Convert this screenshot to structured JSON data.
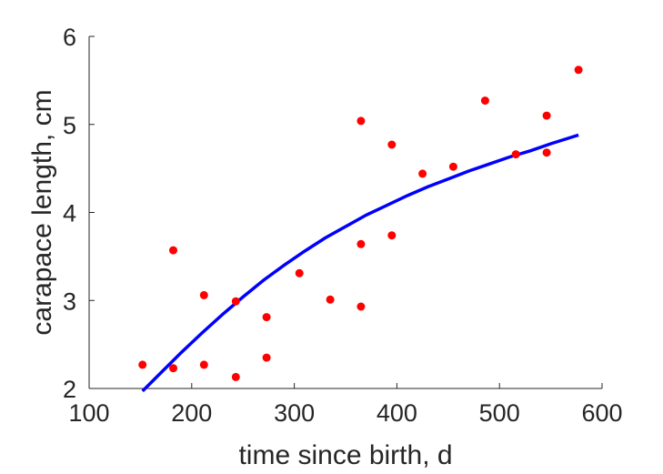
{
  "chart_data": {
    "type": "scatter",
    "title": "",
    "xlabel": "time since birth, d",
    "ylabel": "carapace length, cm",
    "xlim": [
      100,
      600
    ],
    "ylim": [
      2,
      6
    ],
    "x_ticks": [
      "100",
      "200",
      "300",
      "400",
      "500",
      "600"
    ],
    "y_ticks": [
      "2",
      "3",
      "4",
      "5",
      "6"
    ],
    "grid": false,
    "legend": "none",
    "series": [
      {
        "kind": "points",
        "color": "#ff0000",
        "points": [
          [
            152,
            2.27
          ],
          [
            182,
            3.57
          ],
          [
            182,
            2.23
          ],
          [
            212,
            3.06
          ],
          [
            212,
            2.27
          ],
          [
            243,
            2.99
          ],
          [
            243,
            2.13
          ],
          [
            273,
            2.81
          ],
          [
            273,
            2.35
          ],
          [
            305,
            3.31
          ],
          [
            335,
            3.01
          ],
          [
            365,
            5.04
          ],
          [
            365,
            3.64
          ],
          [
            365,
            2.93
          ],
          [
            395,
            4.77
          ],
          [
            395,
            3.74
          ],
          [
            425,
            4.44
          ],
          [
            455,
            4.52
          ],
          [
            486,
            5.27
          ],
          [
            516,
            4.66
          ],
          [
            546,
            5.1
          ],
          [
            546,
            4.68
          ],
          [
            577,
            5.62
          ]
        ]
      },
      {
        "kind": "fitted-curve",
        "color": "#0000ff",
        "points": [
          [
            152,
            1.97
          ],
          [
            170,
            2.18
          ],
          [
            190,
            2.41
          ],
          [
            210,
            2.63
          ],
          [
            230,
            2.84
          ],
          [
            250,
            3.04
          ],
          [
            270,
            3.23
          ],
          [
            290,
            3.4
          ],
          [
            310,
            3.56
          ],
          [
            330,
            3.71
          ],
          [
            350,
            3.84
          ],
          [
            370,
            3.97
          ],
          [
            390,
            4.08
          ],
          [
            410,
            4.19
          ],
          [
            430,
            4.29
          ],
          [
            450,
            4.38
          ],
          [
            470,
            4.47
          ],
          [
            490,
            4.55
          ],
          [
            510,
            4.63
          ],
          [
            530,
            4.7
          ],
          [
            550,
            4.78
          ],
          [
            577,
            4.88
          ]
        ]
      }
    ]
  }
}
